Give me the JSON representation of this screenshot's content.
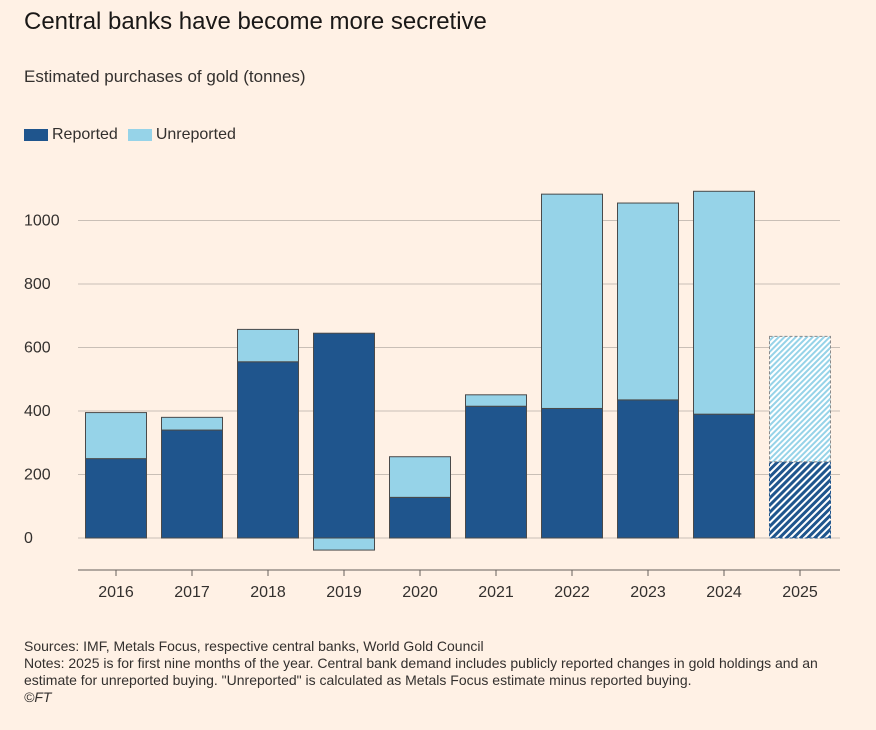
{
  "title": "Central banks have become more secretive",
  "subtitle": "Estimated purchases of gold (tonnes)",
  "legend": {
    "reported": "Reported",
    "unreported": "Unreported"
  },
  "colors": {
    "reported": "#1f558d",
    "unreported": "#96d3e8",
    "grid": "#c9bfb6",
    "text": "#33302e"
  },
  "chart_data": {
    "type": "bar",
    "stacked": true,
    "categories": [
      "2016",
      "2017",
      "2018",
      "2019",
      "2020",
      "2021",
      "2022",
      "2023",
      "2024",
      "2025"
    ],
    "series": [
      {
        "name": "Reported",
        "values": [
          250,
          340,
          555,
          645,
          128,
          415,
          408,
          435,
          390,
          240
        ]
      },
      {
        "name": "Unreported",
        "values": [
          145,
          40,
          102,
          -38,
          128,
          36,
          675,
          620,
          702,
          395
        ]
      }
    ],
    "partial_category": "2025",
    "ylim": [
      -100,
      1100
    ],
    "yticks": [
      0,
      200,
      400,
      600,
      800,
      1000
    ],
    "ytick_labels": [
      "0",
      "200",
      "400",
      "600",
      "800",
      "1000"
    ],
    "xlabel": "",
    "ylabel": ""
  },
  "footer": {
    "sources": "Sources: IMF, Metals Focus, respective central banks, World Gold Council",
    "notes": "Notes: 2025 is for first nine months of the year. Central bank demand includes publicly reported changes in gold holdings and an estimate for unreported buying. \"Unreported\" is calculated as Metals Focus estimate minus reported buying.",
    "credit": "©FT"
  }
}
